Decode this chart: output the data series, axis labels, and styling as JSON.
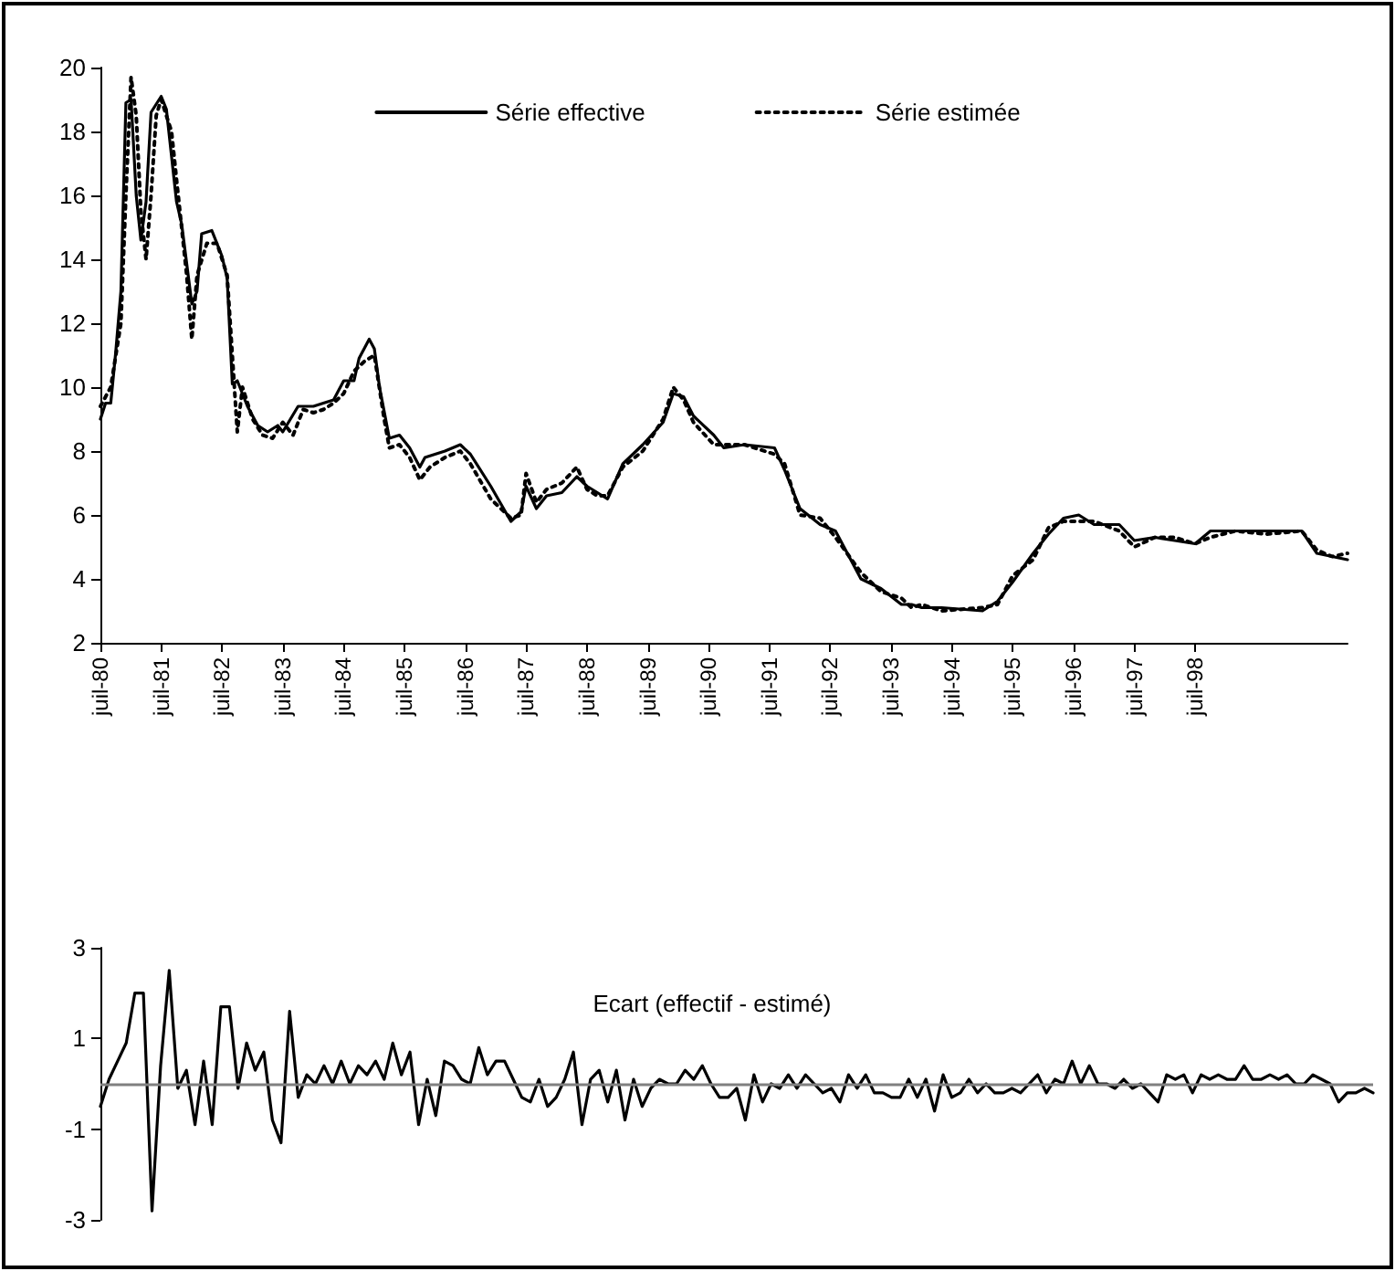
{
  "chart_data": [
    {
      "type": "line",
      "legend": "top",
      "grid": false,
      "marker": "none",
      "xlim": [
        "1980-07",
        "2001-01"
      ],
      "xticks": [
        {
          "value": "1980-07",
          "label": "juil-80"
        },
        {
          "value": "1981-07",
          "label": "juil-81"
        },
        {
          "value": "1982-07",
          "label": "juil-82"
        },
        {
          "value": "1983-07",
          "label": "juil-83"
        },
        {
          "value": "1984-07",
          "label": "juil-84"
        },
        {
          "value": "1985-07",
          "label": "juil-85"
        },
        {
          "value": "1986-07",
          "label": "juil-86"
        },
        {
          "value": "1987-07",
          "label": "juil-87"
        },
        {
          "value": "1988-07",
          "label": "juil-88"
        },
        {
          "value": "1989-07",
          "label": "juil-89"
        },
        {
          "value": "1990-07",
          "label": "juil-90"
        },
        {
          "value": "1991-07",
          "label": "juil-91"
        },
        {
          "value": "1992-07",
          "label": "juil-92"
        },
        {
          "value": "1993-07",
          "label": "juil-93"
        },
        {
          "value": "1994-07",
          "label": "juil-94"
        },
        {
          "value": "1995-07",
          "label": "juil-95"
        },
        {
          "value": "1996-07",
          "label": "juil-96"
        },
        {
          "value": "1997-07",
          "label": "juil-97"
        },
        {
          "value": "1998-07",
          "label": "juil-98"
        }
      ],
      "ylim": [
        2,
        20
      ],
      "yticks": [
        2,
        4,
        6,
        8,
        10,
        12,
        14,
        16,
        18,
        20
      ],
      "series": [
        {
          "name": "Série effective",
          "color": "#000000",
          "line_style": "solid",
          "x": [
            "1980-07",
            "1980-08",
            "1980-09",
            "1980-10",
            "1980-11",
            "1980-12",
            "1981-01",
            "1981-02",
            "1981-03",
            "1981-04",
            "1981-05",
            "1981-07",
            "1981-08",
            "1981-10",
            "1981-11",
            "1982-01",
            "1982-02",
            "1982-03",
            "1982-05",
            "1982-07",
            "1982-08",
            "1982-09",
            "1982-10",
            "1982-12",
            "1983-02",
            "1983-04",
            "1983-06",
            "1983-07",
            "1983-10",
            "1984-01",
            "1984-03",
            "1984-05",
            "1984-07",
            "1984-09",
            "1984-10",
            "1984-12",
            "1985-01",
            "1985-02",
            "1985-04",
            "1985-06",
            "1985-08",
            "1985-10",
            "1985-11",
            "1986-03",
            "1986-06",
            "1986-08",
            "1986-12",
            "1987-04",
            "1987-06",
            "1987-07",
            "1987-09",
            "1987-11",
            "1988-02",
            "1988-05",
            "1988-07",
            "1988-09",
            "1988-11",
            "1989-02",
            "1989-06",
            "1989-10",
            "1989-12",
            "1990-02",
            "1990-04",
            "1990-08",
            "1990-10",
            "1991-02",
            "1991-08",
            "1991-10",
            "1992-01",
            "1992-05",
            "1992-08",
            "1993-01",
            "1993-05",
            "1993-09",
            "1993-11",
            "1994-01",
            "1994-05",
            "1995-01",
            "1995-04",
            "1995-07",
            "1995-11",
            "1996-02",
            "1996-05",
            "1996-08",
            "1996-11",
            "1997-04",
            "1997-07",
            "1997-11",
            "1998-03",
            "1998-07",
            "1998-10",
            "1999-03",
            "1999-09",
            "2000-04",
            "2000-07",
            "2000-10",
            "2001-01"
          ],
          "values": [
            9.0,
            9.5,
            9.5,
            11.1,
            13.0,
            18.9,
            19.0,
            16.0,
            14.6,
            15.8,
            18.6,
            19.1,
            18.7,
            15.8,
            15.1,
            12.6,
            13.0,
            14.8,
            14.9,
            14.1,
            13.4,
            10.1,
            10.2,
            9.4,
            8.8,
            8.6,
            8.8,
            8.6,
            9.4,
            9.4,
            9.5,
            9.6,
            10.2,
            10.2,
            10.9,
            11.5,
            11.2,
            10.0,
            8.4,
            8.5,
            8.1,
            7.5,
            7.8,
            8.0,
            8.2,
            7.9,
            6.9,
            5.8,
            6.1,
            6.9,
            6.2,
            6.6,
            6.7,
            7.2,
            6.9,
            6.7,
            6.5,
            7.6,
            8.2,
            8.9,
            9.8,
            9.7,
            9.1,
            8.5,
            8.1,
            8.2,
            8.1,
            7.4,
            6.2,
            5.7,
            5.5,
            4.0,
            3.7,
            3.2,
            3.2,
            3.1,
            3.1,
            3.0,
            3.3,
            3.9,
            4.8,
            5.4,
            5.9,
            6.0,
            5.7,
            5.7,
            5.2,
            5.3,
            5.2,
            5.1,
            5.5,
            5.5,
            5.5,
            5.5,
            4.8,
            4.7,
            4.6
          ]
        },
        {
          "name": "Série estimée",
          "color": "#000000",
          "line_style": "dotted",
          "x": [
            "1980-07",
            "1980-09",
            "1980-11",
            "1980-12",
            "1981-01",
            "1981-02",
            "1981-03",
            "1981-04",
            "1981-05",
            "1981-06",
            "1981-07",
            "1981-09",
            "1981-10",
            "1981-12",
            "1982-01",
            "1982-02",
            "1982-04",
            "1982-06",
            "1982-08",
            "1982-09",
            "1982-10",
            "1982-11",
            "1983-01",
            "1983-03",
            "1983-05",
            "1983-07",
            "1983-09",
            "1983-11",
            "1984-01",
            "1984-03",
            "1984-05",
            "1984-07",
            "1984-09",
            "1984-11",
            "1985-01",
            "1985-03",
            "1985-04",
            "1985-06",
            "1985-08",
            "1985-10",
            "1985-12",
            "1986-03",
            "1986-06",
            "1986-08",
            "1986-12",
            "1987-04",
            "1987-06",
            "1987-07",
            "1987-09",
            "1987-11",
            "1988-02",
            "1988-05",
            "1988-07",
            "1988-09",
            "1988-11",
            "1989-02",
            "1989-06",
            "1989-10",
            "1989-12",
            "1990-02",
            "1990-04",
            "1990-08",
            "1990-10",
            "1991-02",
            "1991-08",
            "1991-10",
            "1992-01",
            "1992-05",
            "1992-08",
            "1993-01",
            "1993-05",
            "1993-09",
            "1993-11",
            "1994-01",
            "1994-05",
            "1995-01",
            "1995-04",
            "1995-07",
            "1995-11",
            "1996-02",
            "1996-05",
            "1996-08",
            "1996-11",
            "1997-04",
            "1997-07",
            "1997-11",
            "1998-03",
            "1998-07",
            "1998-10",
            "1999-03",
            "1999-09",
            "2000-04",
            "2000-07",
            "2000-10",
            "2001-01"
          ],
          "values": [
            9.4,
            10.0,
            12.0,
            16.0,
            19.7,
            18.5,
            15.5,
            14.0,
            16.0,
            18.5,
            19.0,
            18.0,
            16.5,
            13.5,
            11.5,
            13.5,
            14.5,
            14.5,
            13.5,
            11.0,
            8.6,
            10.0,
            9.0,
            8.5,
            8.4,
            8.9,
            8.5,
            9.3,
            9.2,
            9.3,
            9.5,
            9.8,
            10.5,
            10.8,
            11.0,
            9.0,
            8.1,
            8.2,
            7.8,
            7.1,
            7.5,
            7.8,
            8.0,
            7.6,
            6.5,
            5.9,
            6.0,
            7.3,
            6.4,
            6.8,
            7.0,
            7.5,
            6.8,
            6.6,
            6.6,
            7.5,
            8.0,
            9.0,
            10.0,
            9.6,
            8.9,
            8.2,
            8.2,
            8.2,
            7.9,
            7.6,
            6.0,
            5.9,
            5.3,
            4.2,
            3.6,
            3.4,
            3.1,
            3.2,
            3.0,
            3.1,
            3.2,
            4.1,
            4.6,
            5.6,
            5.8,
            5.8,
            5.8,
            5.5,
            5.0,
            5.3,
            5.3,
            5.1,
            5.3,
            5.5,
            5.4,
            5.5,
            4.9,
            4.7,
            4.8
          ]
        }
      ]
    },
    {
      "type": "line",
      "title": "Ecart (effectif - estimé)",
      "tick_labels": "y",
      "grid": false,
      "marker": "none",
      "legend": false,
      "categories": [
        null,
        null,
        null,
        null,
        null,
        null,
        null,
        null,
        null,
        null,
        null,
        null,
        null,
        null,
        null,
        null,
        null,
        null,
        null,
        null,
        null,
        null,
        null,
        null,
        null,
        null,
        null,
        null,
        null,
        null,
        null,
        null,
        null,
        null,
        null,
        null,
        null,
        null,
        null,
        null,
        null,
        null,
        null,
        null,
        null,
        null,
        null,
        null,
        null,
        null,
        null,
        null,
        null,
        null,
        null,
        null,
        null,
        null,
        null,
        null,
        null,
        null,
        null,
        null,
        null,
        null,
        null,
        null,
        null,
        null,
        null,
        null,
        null,
        null,
        null,
        null,
        null,
        null,
        null,
        null,
        null,
        null,
        null,
        null,
        null,
        null,
        null,
        null,
        null,
        null,
        null,
        null,
        null,
        null,
        null,
        null,
        null,
        null,
        null,
        null,
        null,
        null,
        null,
        null,
        null,
        null,
        null,
        null,
        null,
        null,
        null,
        null,
        null,
        null,
        null,
        null,
        null,
        null,
        null,
        null,
        null,
        null,
        null,
        null,
        null,
        null,
        null,
        null,
        null,
        null,
        null,
        null,
        null,
        null,
        null,
        null,
        null,
        null,
        null,
        null,
        null,
        null,
        null,
        null,
        null,
        null,
        null,
        null,
        null
      ],
      "ylim": [
        -3,
        3
      ],
      "yticks": [
        -3,
        -1,
        1,
        3
      ],
      "ref_lines": [
        {
          "axis": "y",
          "value": 0,
          "color": "#808080"
        }
      ],
      "series": [
        {
          "color": "#000000",
          "values": [
            -0.5,
            0.1,
            0.5,
            0.9,
            2.0,
            2.0,
            -2.8,
            0.4,
            2.5,
            -0.1,
            0.3,
            -0.9,
            0.5,
            -0.9,
            1.7,
            1.7,
            -0.1,
            0.9,
            0.3,
            0.7,
            -0.8,
            -1.3,
            1.6,
            -0.3,
            0.2,
            0.0,
            0.4,
            0.0,
            0.5,
            0.0,
            0.4,
            0.2,
            0.5,
            0.1,
            0.9,
            0.2,
            0.7,
            -0.9,
            0.1,
            -0.7,
            0.5,
            0.4,
            0.1,
            0.0,
            0.8,
            0.2,
            0.5,
            0.5,
            0.1,
            -0.3,
            -0.4,
            0.1,
            -0.5,
            -0.3,
            0.1,
            0.7,
            -0.9,
            0.1,
            0.3,
            -0.4,
            0.3,
            -0.8,
            0.1,
            -0.5,
            -0.1,
            0.1,
            0.0,
            0.0,
            0.3,
            0.1,
            0.4,
            0.0,
            -0.3,
            -0.3,
            -0.1,
            -0.8,
            0.2,
            -0.4,
            0.0,
            -0.1,
            0.2,
            -0.1,
            0.2,
            0.0,
            -0.2,
            -0.1,
            -0.4,
            0.2,
            -0.1,
            0.2,
            -0.2,
            -0.2,
            -0.3,
            -0.3,
            0.1,
            -0.3,
            0.1,
            -0.6,
            0.2,
            -0.3,
            -0.2,
            0.1,
            -0.2,
            0.0,
            -0.2,
            -0.2,
            -0.1,
            -0.2,
            0.0,
            0.2,
            -0.2,
            0.1,
            0.0,
            0.5,
            0.0,
            0.4,
            0.0,
            0.0,
            -0.1,
            0.1,
            -0.1,
            0.0,
            -0.2,
            -0.4,
            0.2,
            0.1,
            0.2,
            -0.2,
            0.2,
            0.1,
            0.2,
            0.1,
            0.1,
            0.4,
            0.1,
            0.1,
            0.2,
            0.1,
            0.2,
            0.0,
            0.0,
            0.2,
            0.1,
            0.0,
            -0.4,
            -0.2,
            -0.2,
            -0.1,
            -0.2
          ]
        }
      ]
    }
  ]
}
